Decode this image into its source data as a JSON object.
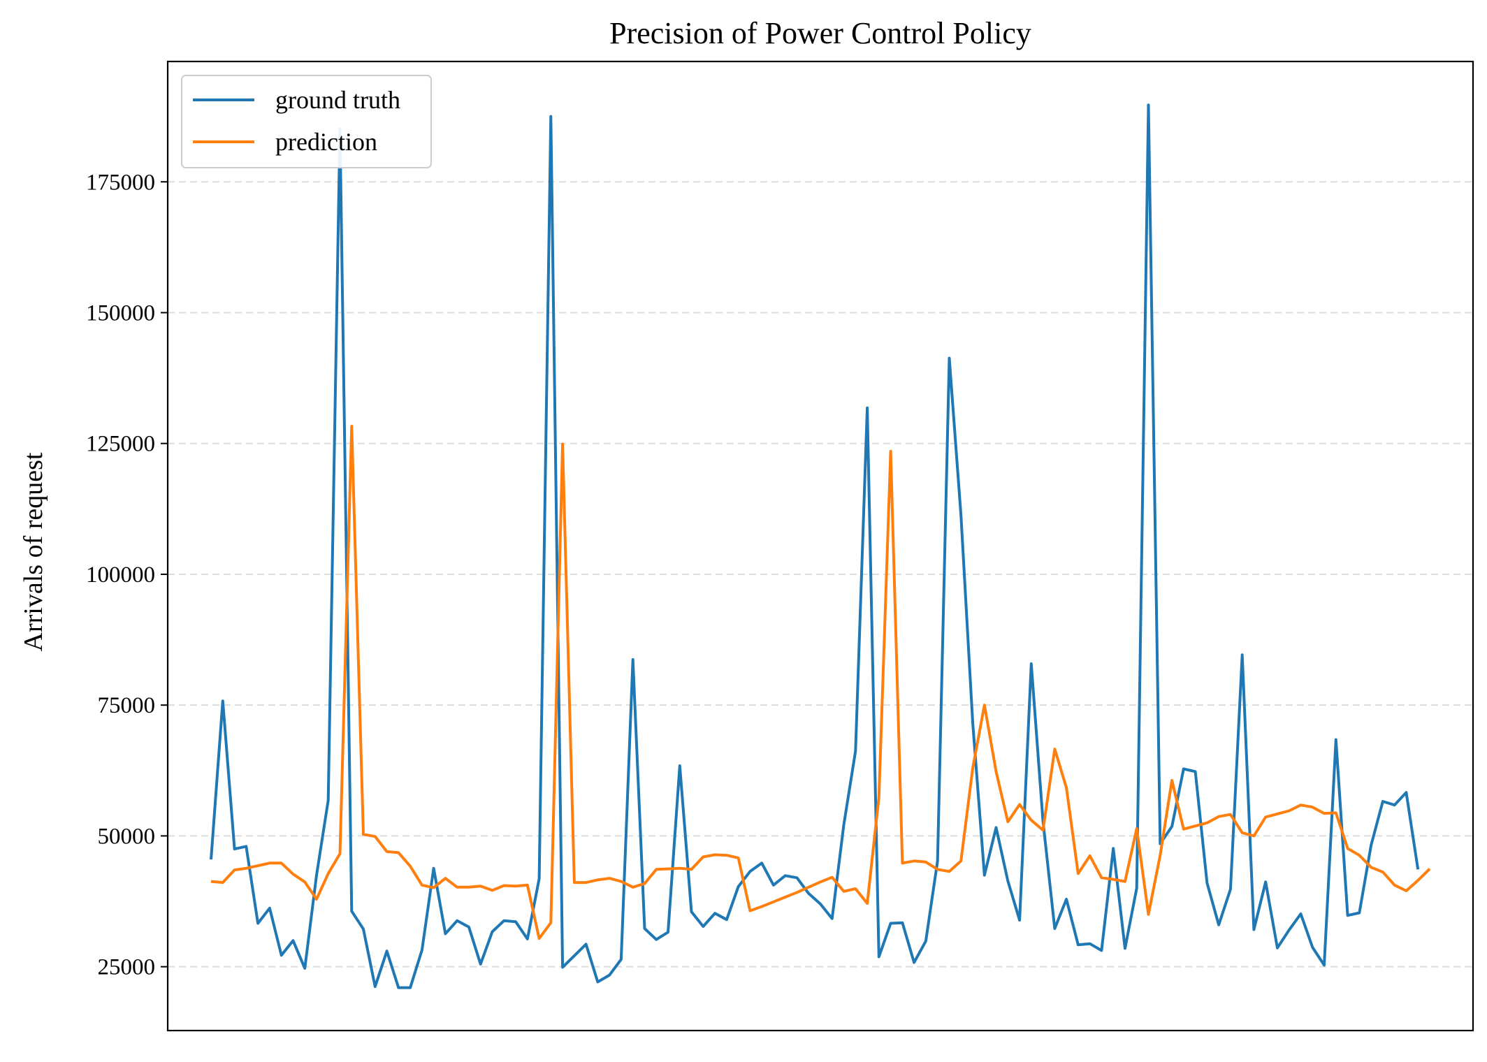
{
  "chart_data": {
    "type": "line",
    "title": "Precision of Power Control Policy",
    "xlabel": "",
    "ylabel": "Arrivals of request",
    "ylim": [
      12800,
      198000
    ],
    "xlim": [
      -3.7,
      107.7
    ],
    "yticks": [
      25000,
      50000,
      75000,
      100000,
      125000,
      150000,
      175000
    ],
    "y_tick_labels": [
      "25000",
      "50000",
      "75000",
      "100000",
      "125000",
      "150000",
      "175000"
    ],
    "x_ticks_shown": false,
    "grid": "y-dashed",
    "legend_position": "top-left",
    "series": [
      {
        "name": "ground truth",
        "color": "#1f77b4",
        "values": [
          45500,
          75800,
          47500,
          48000,
          33300,
          36200,
          27200,
          30000,
          24700,
          42500,
          56800,
          185200,
          35600,
          32200,
          21200,
          28000,
          21000,
          21000,
          28200,
          43800,
          31300,
          33800,
          32600,
          25500,
          31700,
          33800,
          33600,
          30300,
          41800,
          187500,
          24900,
          27100,
          29300,
          22100,
          23400,
          26400,
          83700,
          32300,
          30200,
          31600,
          63400,
          35500,
          32700,
          35200,
          34000,
          40300,
          43200,
          44800,
          40600,
          42400,
          42000,
          39000,
          37000,
          34200,
          52100,
          66200,
          131800,
          26900,
          33300,
          33400,
          25800,
          29900,
          45200,
          141300,
          111300,
          71700,
          42500,
          51600,
          41400,
          33900,
          82900,
          52800,
          32300,
          37900,
          29200,
          29400,
          28100,
          47600,
          28500,
          40000,
          189700,
          48500,
          51800,
          62800,
          62300,
          41000,
          33000,
          39800,
          84600,
          32100,
          41200,
          28600,
          32000,
          35100,
          28700,
          25300,
          68400,
          34800,
          35300,
          48200,
          56600,
          55900,
          58300,
          43600
        ]
      },
      {
        "name": "prediction",
        "color": "#ff7f0e",
        "values": [
          41300,
          41100,
          43500,
          43800,
          44300,
          44800,
          44800,
          42700,
          41200,
          37900,
          42800,
          46600,
          128300,
          50300,
          49900,
          47000,
          46800,
          44200,
          40600,
          40100,
          41900,
          40200,
          40200,
          40400,
          39600,
          40500,
          40400,
          40600,
          30400,
          33400,
          124900,
          41100,
          41100,
          41600,
          41900,
          41300,
          40200,
          40900,
          43600,
          43700,
          43800,
          43600,
          46000,
          46400,
          46300,
          45800,
          35700,
          36500,
          37400,
          38300,
          39200,
          40200,
          41200,
          42100,
          39400,
          39900,
          37100,
          57400,
          123500,
          44800,
          45200,
          45000,
          43600,
          43200,
          45200,
          62900,
          75000,
          62300,
          52700,
          56000,
          53000,
          51100,
          66600,
          59200,
          42800,
          46200,
          42000,
          41700,
          41300,
          51400,
          35000,
          46300,
          60600,
          51300,
          51900,
          52500,
          53700,
          54100,
          50600,
          50000,
          53600,
          54200,
          54800,
          55900,
          55500,
          54300,
          54400,
          47600,
          46300,
          44000,
          43100,
          40600,
          39500,
          41500,
          43700
        ]
      }
    ]
  }
}
